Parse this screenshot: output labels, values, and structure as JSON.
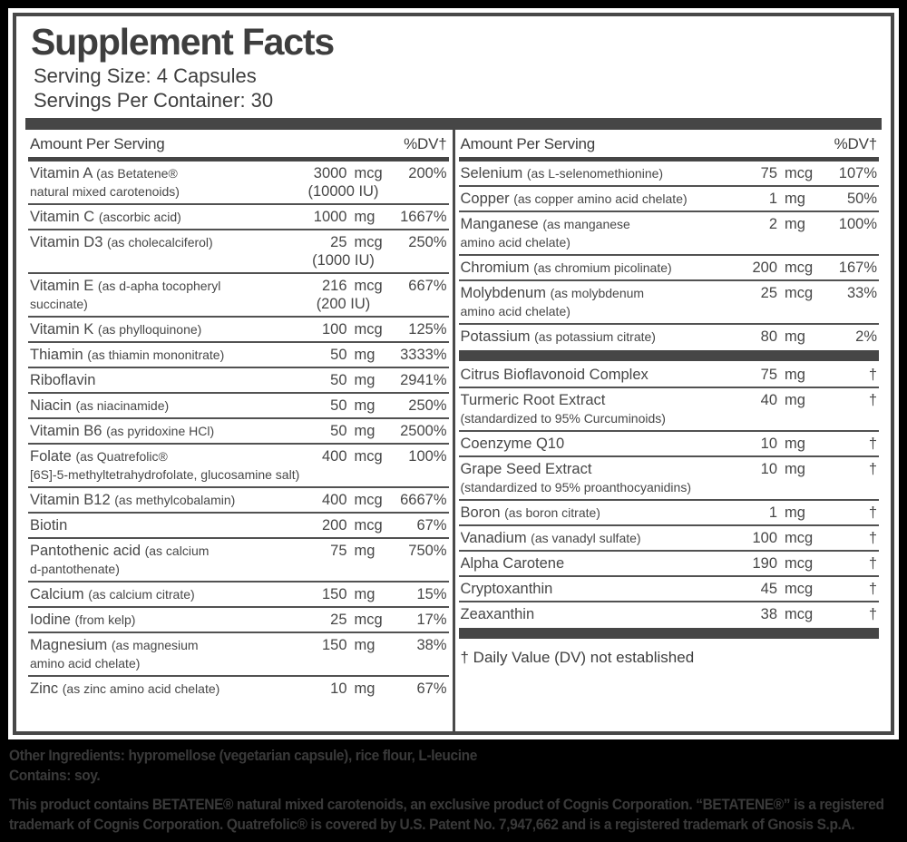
{
  "header": {
    "title": "Supplement Facts",
    "serving_size": "Serving Size: 4 Capsules",
    "servings_per_container": "Servings Per Container: 30"
  },
  "column_header": {
    "amount": "Amount Per Serving",
    "dv": "%DV†"
  },
  "colors": {
    "background": "#000000",
    "panel": "#ffffff",
    "text": "#424242",
    "bar": "#464646",
    "line": "#525252"
  },
  "columns": [
    {
      "groups": [
        {
          "rows": [
            {
              "lines": [
                {
                  "main": "Vitamin A ",
                  "note": "(as Betatene®"
                },
                {
                  "note": "natural mixed carotenoids)"
                }
              ],
              "num": "3000",
              "unit": "mcg",
              "sub": "(10000 IU)",
              "dv": "200%"
            },
            {
              "lines": [
                {
                  "main": "Vitamin C ",
                  "note": "(ascorbic acid)"
                }
              ],
              "num": "1000",
              "unit": "mg",
              "dv": "1667%"
            },
            {
              "lines": [
                {
                  "main": "Vitamin D3 ",
                  "note": "(as cholecalciferol)"
                }
              ],
              "num": "25",
              "unit": "mcg",
              "sub": "(1000 IU)",
              "dv": "250%"
            },
            {
              "lines": [
                {
                  "main": "Vitamin E ",
                  "note": "(as d-apha tocopheryl"
                },
                {
                  "note": "succinate)"
                }
              ],
              "num": "216",
              "unit": "mcg",
              "sub": "(200 IU)",
              "dv": "667%"
            },
            {
              "lines": [
                {
                  "main": "Vitamin K ",
                  "note": "(as phylloquinone)"
                }
              ],
              "num": "100",
              "unit": "mcg",
              "dv": "125%"
            },
            {
              "lines": [
                {
                  "main": "Thiamin ",
                  "note": "(as thiamin mononitrate)"
                }
              ],
              "num": "50",
              "unit": "mg",
              "dv": "3333%"
            },
            {
              "lines": [
                {
                  "main": "Riboflavin"
                }
              ],
              "num": "50",
              "unit": "mg",
              "dv": "2941%"
            },
            {
              "lines": [
                {
                  "main": "Niacin ",
                  "note": "(as niacinamide)"
                }
              ],
              "num": "50",
              "unit": "mg",
              "dv": "250%"
            },
            {
              "lines": [
                {
                  "main": "Vitamin B6 ",
                  "note": "(as pyridoxine HCl)"
                }
              ],
              "num": "50",
              "unit": "mg",
              "dv": "2500%"
            },
            {
              "lines": [
                {
                  "main": "Folate ",
                  "note": "(as Quatrefolic®"
                },
                {
                  "note": "[6S]-5-methyltetrahydrofolate, glucosamine salt)",
                  "wide": true
                }
              ],
              "num": "400",
              "unit": "mcg",
              "dv": "100%"
            },
            {
              "lines": [
                {
                  "main": "Vitamin B12 ",
                  "note": "(as methylcobalamin)"
                }
              ],
              "num": "400",
              "unit": "mcg",
              "dv": "6667%"
            },
            {
              "lines": [
                {
                  "main": "Biotin"
                }
              ],
              "num": "200",
              "unit": "mcg",
              "dv": "67%"
            },
            {
              "lines": [
                {
                  "main": "Pantothenic acid ",
                  "note": "(as calcium"
                },
                {
                  "note": "d-pantothenate)"
                }
              ],
              "num": "75",
              "unit": "mg",
              "dv": "750%"
            },
            {
              "lines": [
                {
                  "main": "Calcium ",
                  "note": "(as calcium citrate)"
                }
              ],
              "num": "150",
              "unit": "mg",
              "dv": "15%"
            },
            {
              "lines": [
                {
                  "main": "Iodine ",
                  "note": "(from kelp)"
                }
              ],
              "num": "25",
              "unit": "mcg",
              "dv": "17%"
            },
            {
              "lines": [
                {
                  "main": "Magnesium ",
                  "note": "(as magnesium"
                },
                {
                  "note": "amino acid chelate)"
                }
              ],
              "num": "150",
              "unit": "mg",
              "dv": "38%"
            },
            {
              "lines": [
                {
                  "main": "Zinc ",
                  "note": "(as zinc amino acid chelate)"
                }
              ],
              "num": "10",
              "unit": "mg",
              "dv": "67%"
            }
          ]
        }
      ]
    },
    {
      "groups": [
        {
          "rows": [
            {
              "lines": [
                {
                  "main": "Selenium ",
                  "note": "(as L-selenomethionine)"
                }
              ],
              "num": "75",
              "unit": "mcg",
              "dv": "107%"
            },
            {
              "lines": [
                {
                  "main": "Copper ",
                  "note": "(as copper amino acid chelate)"
                }
              ],
              "num": "1",
              "unit": "mg",
              "dv": "50%"
            },
            {
              "lines": [
                {
                  "main": "Manganese ",
                  "note": "(as manganese"
                },
                {
                  "note": "amino acid chelate)"
                }
              ],
              "num": "2",
              "unit": "mg",
              "dv": "100%"
            },
            {
              "lines": [
                {
                  "main": "Chromium ",
                  "note": "(as chromium picolinate)"
                }
              ],
              "num": "200",
              "unit": "mcg",
              "dv": "167%"
            },
            {
              "lines": [
                {
                  "main": "Molybdenum ",
                  "note": "(as molybdenum"
                },
                {
                  "note": "amino acid chelate)"
                }
              ],
              "num": "25",
              "unit": "mcg",
              "dv": "33%"
            },
            {
              "lines": [
                {
                  "main": "Potassium ",
                  "note": "(as potassium citrate)"
                }
              ],
              "num": "80",
              "unit": "mg",
              "dv": "2%"
            }
          ]
        },
        {
          "rows": [
            {
              "lines": [
                {
                  "main": "Citrus Bioflavonoid Complex"
                }
              ],
              "num": "75",
              "unit": "mg",
              "dv": "†"
            },
            {
              "lines": [
                {
                  "main": "Turmeric Root Extract"
                },
                {
                  "note": "(standardized to 95% Curcuminoids)",
                  "wide": true
                }
              ],
              "num": "40",
              "unit": "mg",
              "dv": "†"
            },
            {
              "lines": [
                {
                  "main": "Coenzyme Q10"
                }
              ],
              "num": "10",
              "unit": "mg",
              "dv": "†"
            },
            {
              "lines": [
                {
                  "main": "Grape Seed Extract"
                },
                {
                  "note": "(standardized to 95% proanthocyanidins)",
                  "wide": true
                }
              ],
              "num": "10",
              "unit": "mg",
              "dv": "†"
            },
            {
              "lines": [
                {
                  "main": "Boron ",
                  "note": "(as boron citrate)"
                }
              ],
              "num": "1",
              "unit": "mg",
              "dv": "†"
            },
            {
              "lines": [
                {
                  "main": "Vanadium ",
                  "note": "(as vanadyl sulfate)"
                }
              ],
              "num": "100",
              "unit": "mcg",
              "dv": "†"
            },
            {
              "lines": [
                {
                  "main": "Alpha Carotene"
                }
              ],
              "num": "190",
              "unit": "mcg",
              "dv": "†"
            },
            {
              "lines": [
                {
                  "main": "Cryptoxanthin"
                }
              ],
              "num": "45",
              "unit": "mcg",
              "dv": "†"
            },
            {
              "lines": [
                {
                  "main": "Zeaxanthin"
                }
              ],
              "num": "38",
              "unit": "mcg",
              "dv": "†"
            }
          ]
        }
      ],
      "footnote": "† Daily Value (DV) not established"
    }
  ],
  "footer": {
    "other_ingredients": "Other Ingredients: hypromellose (vegetarian capsule), rice flour, L-leucine",
    "contains": "Contains: soy.",
    "trademark_notice": "This product contains BETATENE® natural mixed carotenoids, an exclusive product of Cognis Corporation. “BETATENE®” is a registered trademark of Cognis Corporation. Quatrefolic® is covered by U.S. Patent No. 7,947,662 and is a registered trademark of Gnosis S.p.A."
  }
}
